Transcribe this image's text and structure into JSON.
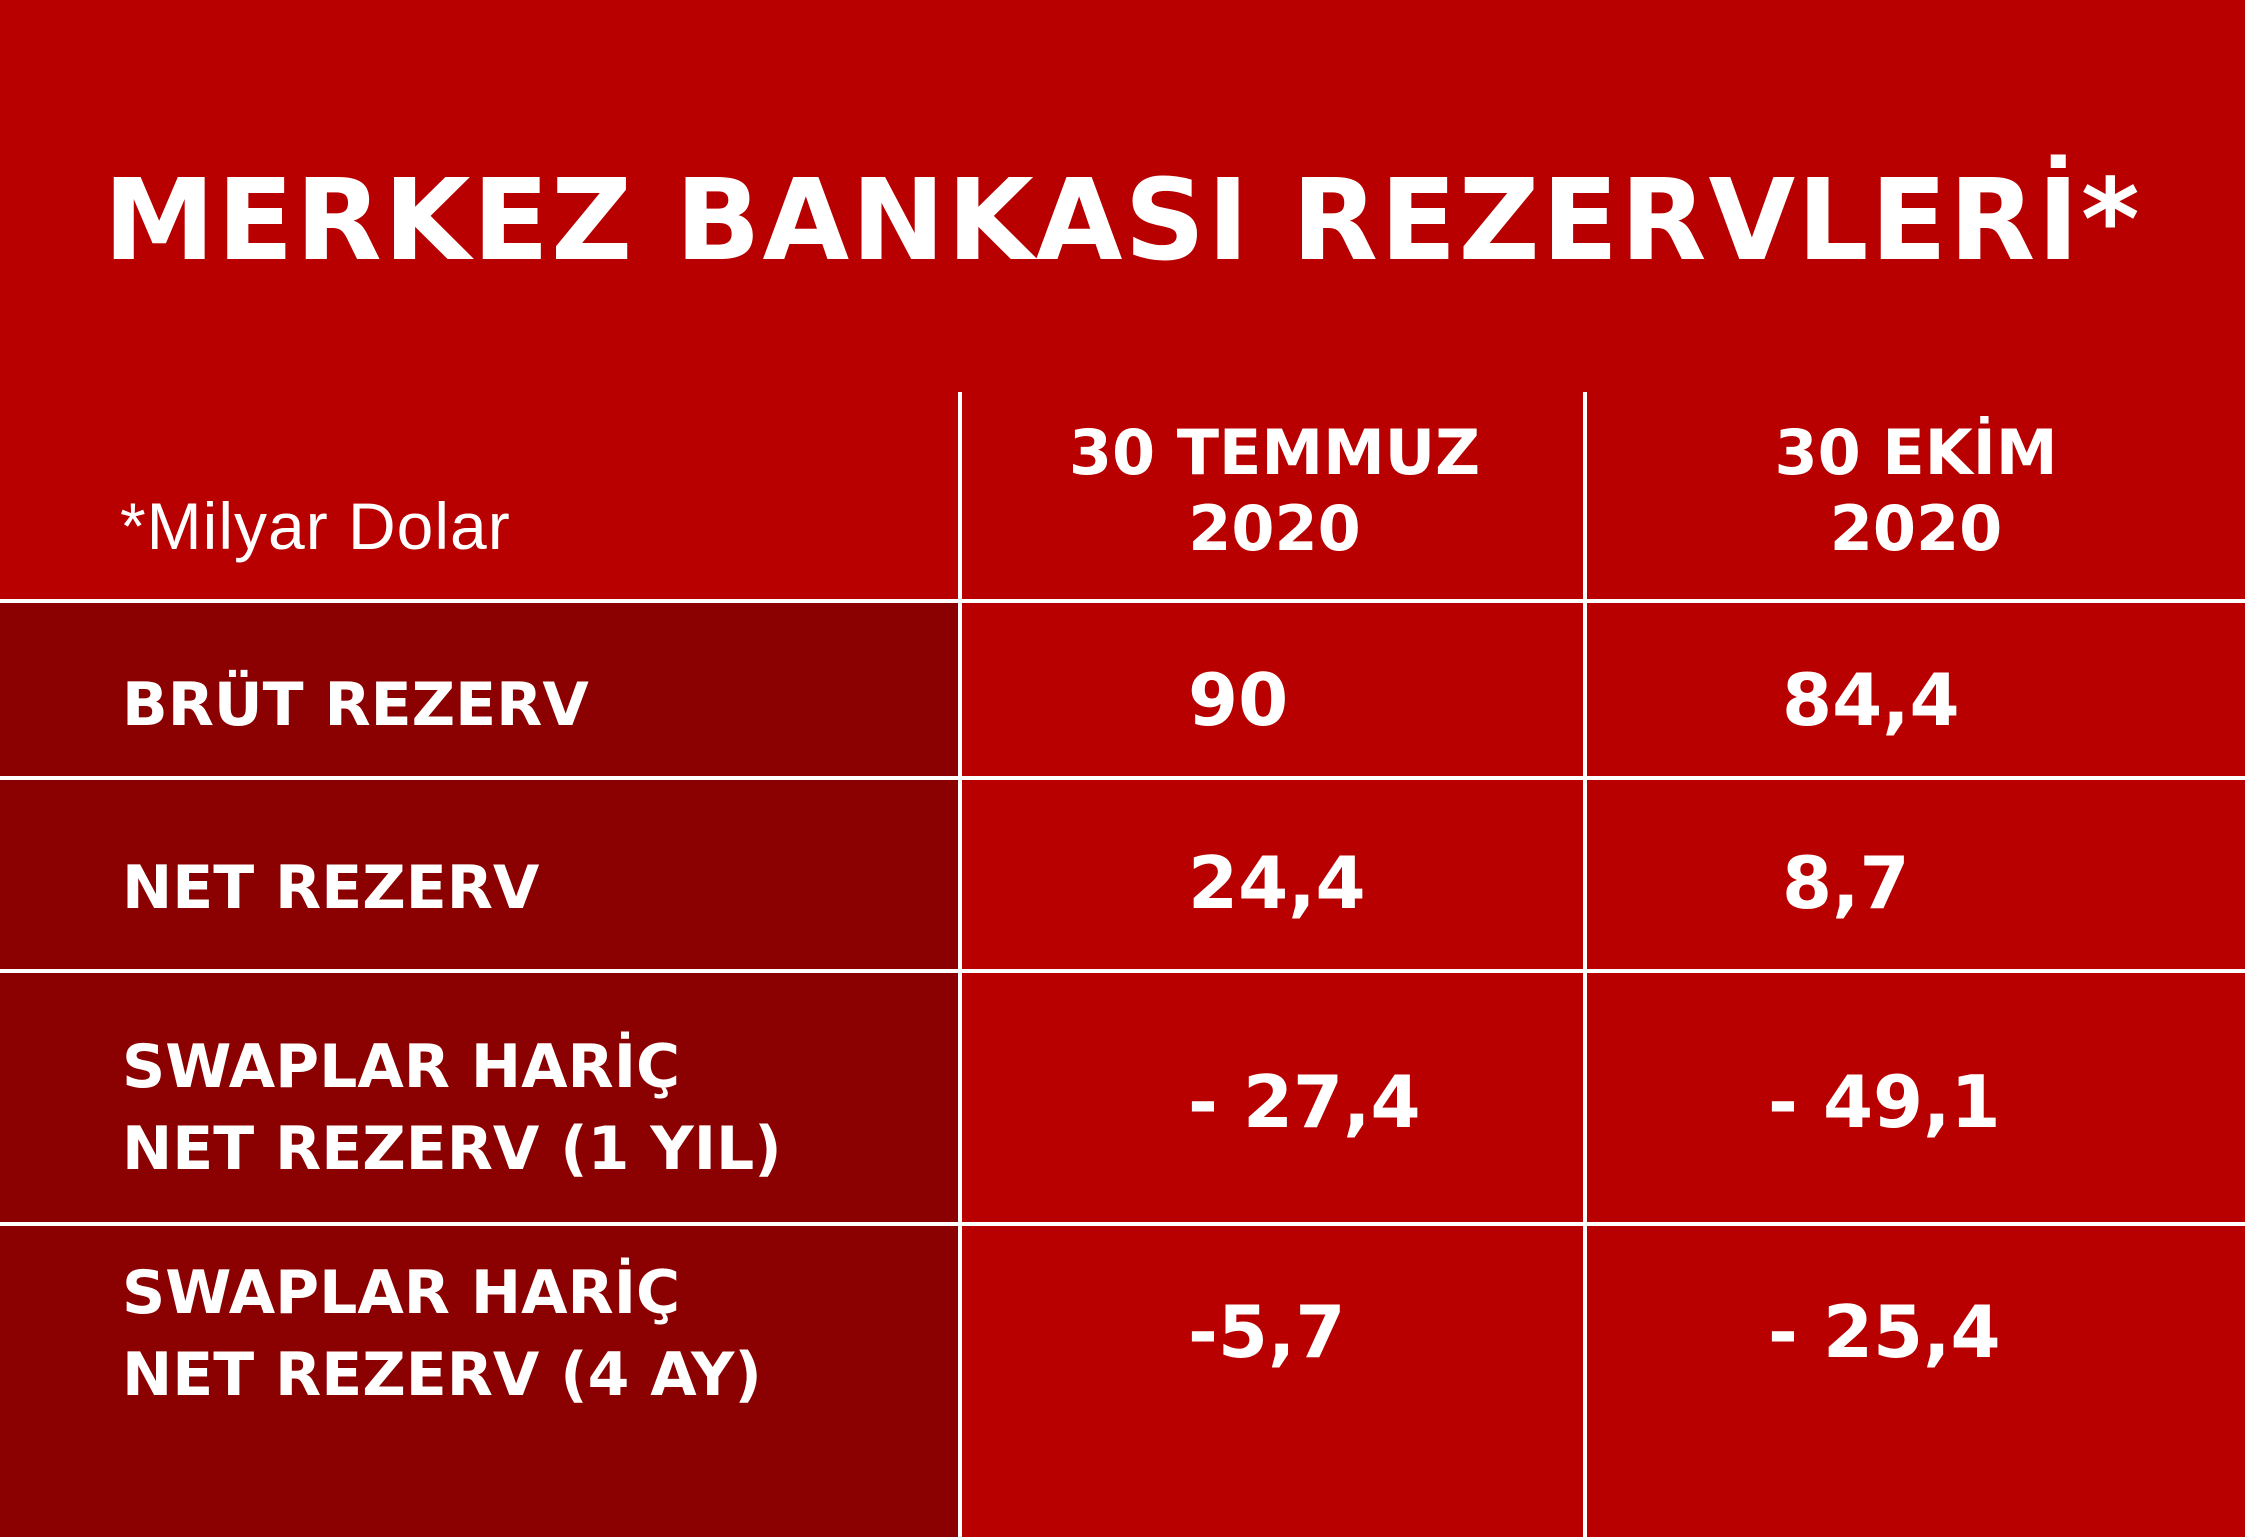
{
  "title": "MERKEZ BANKASI REZERVLERİ*",
  "unit_note": "*Milyar Dolar",
  "colors": {
    "background": "#b80000",
    "label_column": "#8b0000",
    "lines": "#ffffff"
  },
  "columns": [
    {
      "line1": "30 TEMMUZ",
      "line2": "2020"
    },
    {
      "line1": "30 EKİM",
      "line2": "2020"
    }
  ],
  "rows": [
    {
      "label_line1": "BRÜT REZERV",
      "label_line2": "",
      "values": [
        "90",
        "84,4"
      ]
    },
    {
      "label_line1": "NET REZERV",
      "label_line2": "",
      "values": [
        "24,4",
        "8,7"
      ]
    },
    {
      "label_line1": "SWAPLAR HARİÇ",
      "label_line2": "NET REZERV (1 YIL)",
      "values": [
        "- 27,4",
        "- 49,1"
      ]
    },
    {
      "label_line1": "SWAPLAR HARİÇ",
      "label_line2": "NET REZERV (4 AY)",
      "values": [
        "-5,7",
        "- 25,4"
      ]
    }
  ]
}
